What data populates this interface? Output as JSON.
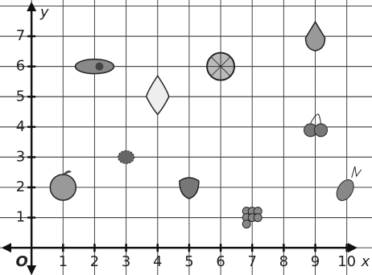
{
  "chart_data": {
    "type": "scatter",
    "x": [
      1,
      2,
      3,
      4,
      5,
      6,
      7,
      9,
      9,
      10
    ],
    "values": [
      2,
      6,
      3,
      5,
      2,
      6,
      1,
      7,
      4,
      2
    ],
    "xlim": [
      -1,
      10.8
    ],
    "ylim": [
      -0.9,
      8.2
    ],
    "xticks": [
      1,
      2,
      3,
      4,
      5,
      6,
      7,
      8,
      9,
      10
    ],
    "yticks": [
      1,
      2,
      3,
      4,
      5,
      6,
      7
    ],
    "x_label": "x",
    "y_label": "y",
    "origin_label": "O",
    "grid": true
  }
}
